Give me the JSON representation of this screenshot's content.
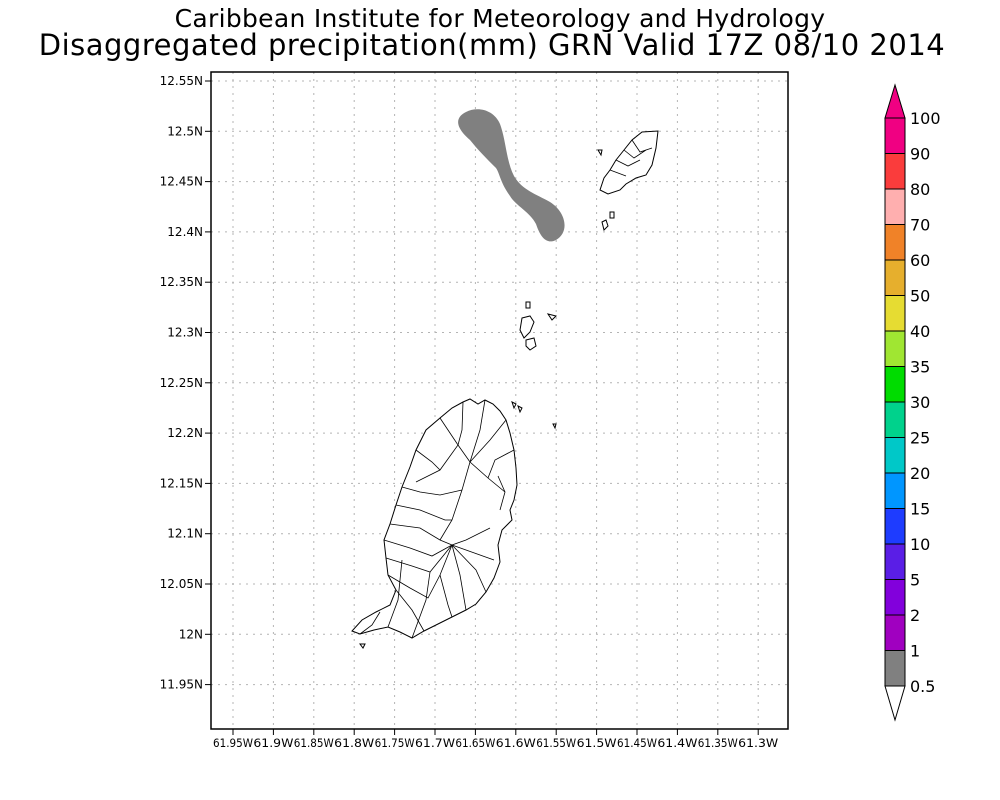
{
  "header": {
    "institute": "Caribbean Institute for Meteorology and Hydrology",
    "product": "Disaggregated precipitation(mm) GRN Valid 17Z 08/10 2014"
  },
  "map": {
    "region": "GRN",
    "lat_ticks": [
      "12.55N",
      "12.5N",
      "12.45N",
      "12.4N",
      "12.35N",
      "12.3N",
      "12.25N",
      "12.2N",
      "12.15N",
      "12.1N",
      "12.05N",
      "12N",
      "11.95N"
    ],
    "lon_ticks": [
      "61.95W",
      "61.9W",
      "61.85W",
      "61.8W",
      "61.75W",
      "61.7W",
      "61.65W",
      "61.6W",
      "61.55W",
      "61.5W",
      "61.45W",
      "61.4W",
      "61.35W",
      "61.3W"
    ],
    "gridlines": true,
    "precip_band_color": "#808080",
    "land_fill": "#ffffff",
    "outline_color": "#000000"
  },
  "colorbar": {
    "levels": [
      "0.5",
      "1",
      "2",
      "5",
      "10",
      "15",
      "20",
      "25",
      "30",
      "35",
      "40",
      "50",
      "60",
      "70",
      "80",
      "90",
      "100"
    ],
    "colors": [
      "#808080",
      "#a000c0",
      "#8200dc",
      "#5a1ee6",
      "#1e3cff",
      "#0096ff",
      "#00c8c8",
      "#00d28c",
      "#00dc00",
      "#a0e632",
      "#e6dc32",
      "#e6af2d",
      "#f08228",
      "#ffafaf",
      "#fa3c3c",
      "#f00082",
      "#f00082"
    ]
  }
}
